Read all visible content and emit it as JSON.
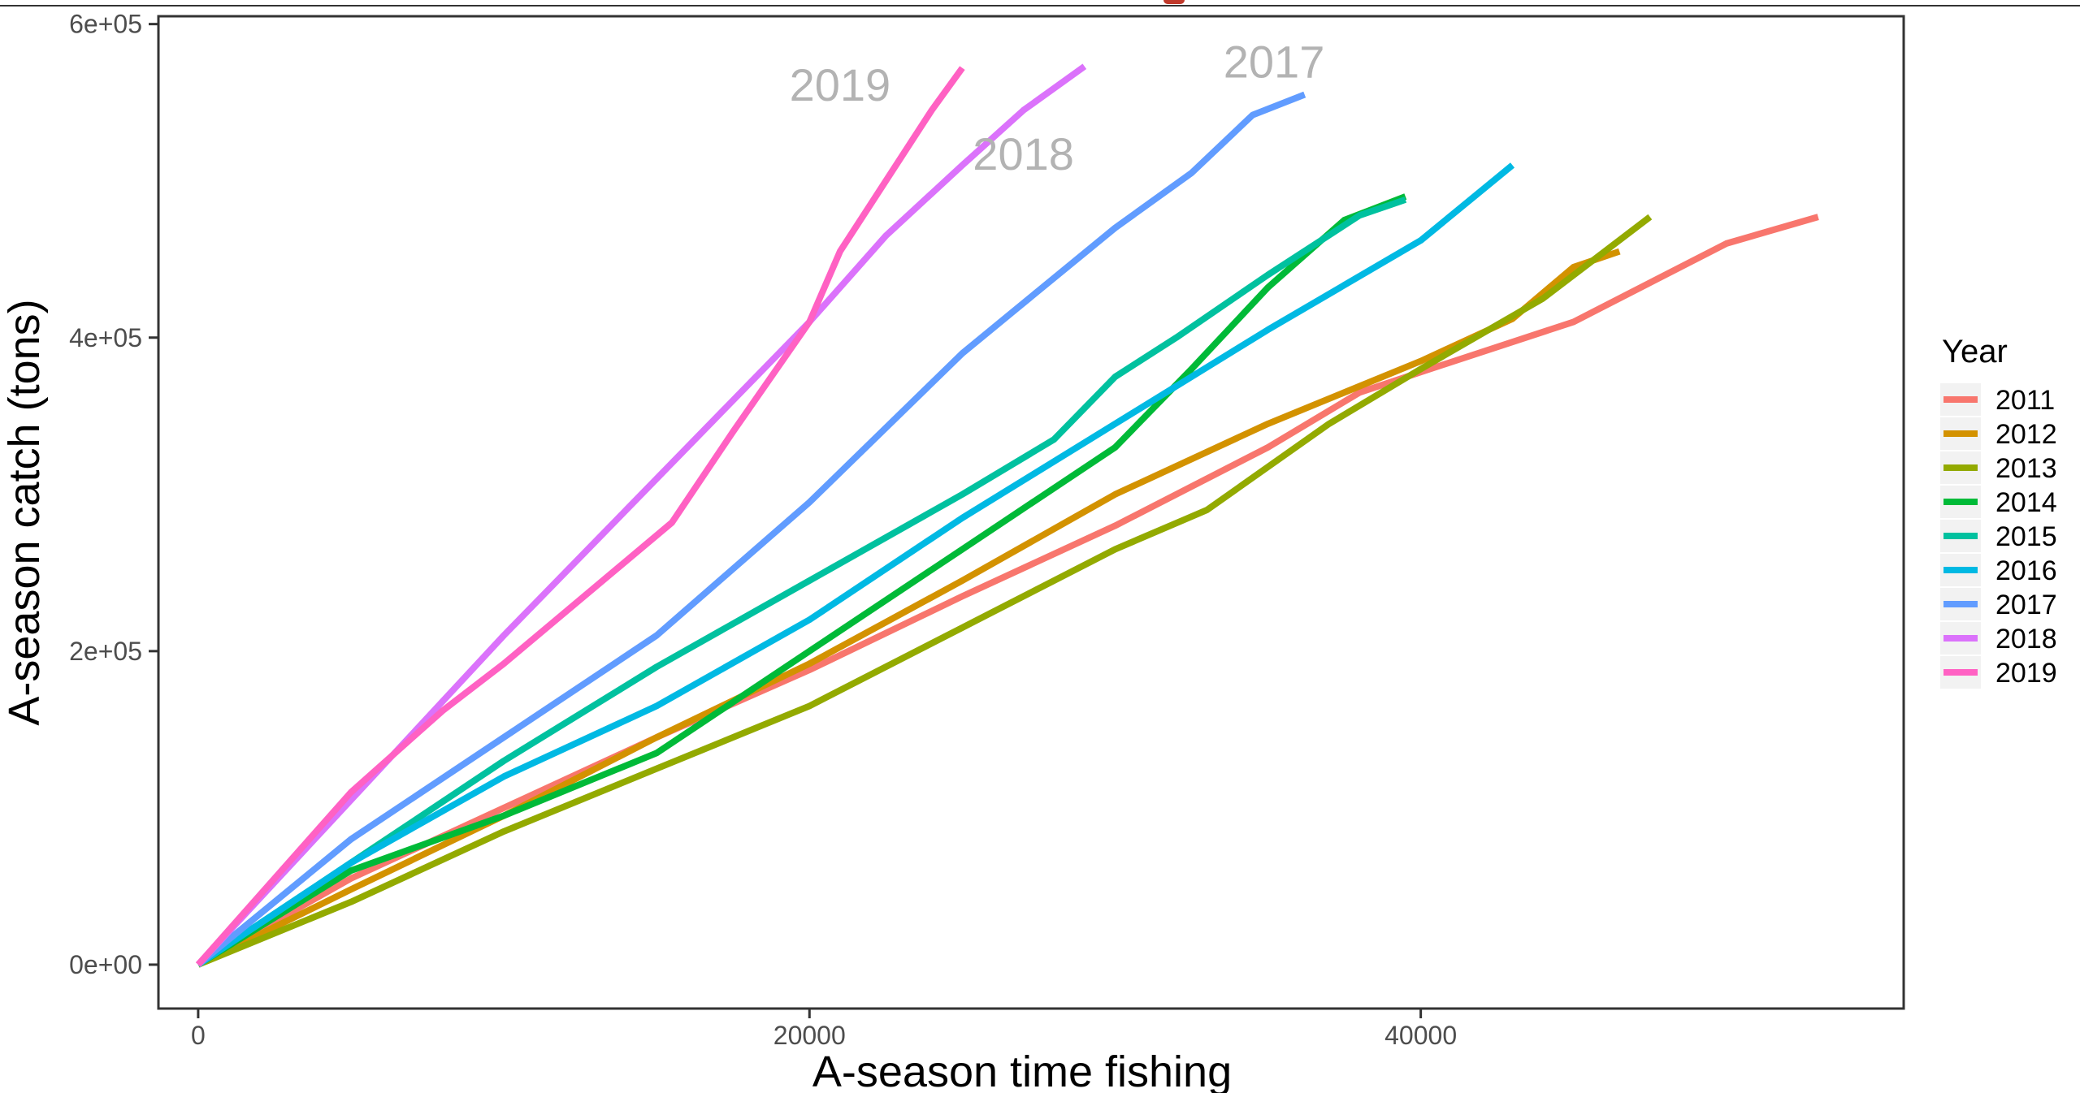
{
  "chart_data": {
    "type": "line",
    "xlabel": "A-season time fishing",
    "ylabel": "A-season catch (tons)",
    "xlim": [
      -1300,
      55800
    ],
    "ylim": [
      -28000,
      605000
    ],
    "x_ticks": [
      0,
      20000,
      40000
    ],
    "x_tick_labels": [
      "0",
      "20000",
      "40000"
    ],
    "y_ticks": [
      0,
      200000,
      400000,
      600000
    ],
    "y_tick_labels": [
      "0e+00",
      "2e+05",
      "4e+05",
      "6e+05"
    ],
    "grid": false,
    "legend": {
      "title": "Year",
      "placement": "right"
    },
    "series": [
      {
        "name": "2011",
        "color": "#F8766D",
        "x": [
          0,
          5000,
          10000,
          15000,
          20000,
          25000,
          30000,
          35000,
          38000,
          40000,
          45000,
          50000,
          53000
        ],
        "y": [
          0,
          55000,
          100000,
          145000,
          188000,
          235000,
          280000,
          330000,
          365000,
          378000,
          410000,
          460000,
          477000
        ]
      },
      {
        "name": "2012",
        "color": "#D39200",
        "x": [
          0,
          5000,
          10000,
          15000,
          20000,
          25000,
          30000,
          35000,
          40000,
          43000,
          45000,
          46500
        ],
        "y": [
          0,
          48000,
          95000,
          145000,
          192000,
          245000,
          300000,
          345000,
          385000,
          412000,
          445000,
          455000
        ]
      },
      {
        "name": "2013",
        "color": "#93AA00",
        "x": [
          0,
          5000,
          10000,
          15000,
          20000,
          25000,
          30000,
          33000,
          37000,
          40000,
          44000,
          47500
        ],
        "y": [
          0,
          40000,
          85000,
          125000,
          165000,
          215000,
          265000,
          290000,
          345000,
          380000,
          425000,
          477000
        ]
      },
      {
        "name": "2014",
        "color": "#00BA38",
        "x": [
          0,
          5000,
          10000,
          15000,
          20000,
          25000,
          30000,
          32500,
          35000,
          37500,
          39500
        ],
        "y": [
          0,
          60000,
          95000,
          135000,
          200000,
          265000,
          330000,
          380000,
          432000,
          475000,
          490000
        ]
      },
      {
        "name": "2015",
        "color": "#00C19F",
        "x": [
          0,
          5000,
          10000,
          15000,
          20000,
          25000,
          28000,
          30000,
          32000,
          35000,
          38000,
          39500
        ],
        "y": [
          0,
          65000,
          130000,
          190000,
          245000,
          300000,
          335000,
          375000,
          400000,
          440000,
          478000,
          488000
        ]
      },
      {
        "name": "2016",
        "color": "#00B9E3",
        "x": [
          0,
          5000,
          10000,
          15000,
          20000,
          25000,
          30000,
          35000,
          40000,
          43000
        ],
        "y": [
          0,
          65000,
          120000,
          165000,
          220000,
          285000,
          345000,
          405000,
          462000,
          510000
        ]
      },
      {
        "name": "2017",
        "color": "#619CFF",
        "x": [
          0,
          5000,
          10000,
          15000,
          20000,
          25000,
          27500,
          30000,
          32500,
          34500,
          36200
        ],
        "y": [
          0,
          80000,
          145000,
          210000,
          295000,
          390000,
          430000,
          470000,
          505000,
          542000,
          555000
        ]
      },
      {
        "name": "2018",
        "color": "#DB72FB",
        "x": [
          0,
          5000,
          10000,
          14000,
          17000,
          20000,
          22500,
          25000,
          27000,
          29000
        ],
        "y": [
          0,
          105000,
          210000,
          290000,
          350000,
          410000,
          465000,
          510000,
          545000,
          573000
        ]
      },
      {
        "name": "2019",
        "color": "#FF61C3",
        "x": [
          0,
          5000,
          8000,
          10000,
          15500,
          17500,
          20000,
          21000,
          22500,
          24000,
          25000
        ],
        "y": [
          0,
          110000,
          162000,
          192000,
          282000,
          340000,
          410000,
          455000,
          500000,
          545000,
          572000
        ]
      }
    ],
    "annotations": [
      {
        "text": "2019",
        "x": 21000,
        "y": 551000
      },
      {
        "text": "2018",
        "x": 27000,
        "y": 507000
      },
      {
        "text": "2017",
        "x": 35200,
        "y": 566000
      }
    ]
  }
}
